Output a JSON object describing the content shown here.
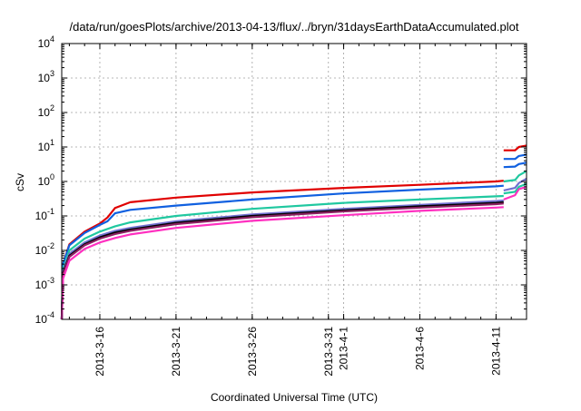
{
  "chart_data": {
    "type": "line",
    "title": "/data/run/goesPlots/archive/2013-04-13/flux/../bryn/31daysEarthDataAccumulated.plot",
    "xlabel": "Coordinated Universal Time (UTC)",
    "ylabel": "cSv",
    "yscale": "log",
    "ylim": [
      0.0001,
      10000
    ],
    "xlim": [
      "2013-03-13 12:00",
      "2013-04-13 00:00"
    ],
    "grid": true,
    "legend": "none",
    "x_ticks": [
      {
        "label": "2013-3-16",
        "x": "2013-03-16"
      },
      {
        "label": "2013-3-21",
        "x": "2013-03-21"
      },
      {
        "label": "2013-3-26",
        "x": "2013-03-26"
      },
      {
        "label": "2013-3-31",
        "x": "2013-03-31"
      },
      {
        "label": "2013-4-1",
        "x": "2013-04-01"
      },
      {
        "label": "2013-4-6",
        "x": "2013-04-06"
      },
      {
        "label": "2013-4-11",
        "x": "2013-04-11"
      }
    ],
    "y_ticks": [
      {
        "base": "10",
        "exp": "-4",
        "value": 0.0001
      },
      {
        "base": "10",
        "exp": "-3",
        "value": 0.001
      },
      {
        "base": "10",
        "exp": "-2",
        "value": 0.01
      },
      {
        "base": "10",
        "exp": "-1",
        "value": 0.1
      },
      {
        "base": "10",
        "exp": "0",
        "value": 1
      },
      {
        "base": "10",
        "exp": "1",
        "value": 10
      },
      {
        "base": "10",
        "exp": "2",
        "value": 100
      },
      {
        "base": "10",
        "exp": "3",
        "value": 1000
      },
      {
        "base": "10",
        "exp": "4",
        "value": 10000
      }
    ],
    "series": [
      {
        "color": "#e00000",
        "points": [
          [
            "2013-03-13 12:00",
            0.0001
          ],
          [
            "2013-03-13 14:00",
            0.004
          ],
          [
            "2013-03-14 00:00",
            0.015
          ],
          [
            "2013-03-15 00:00",
            0.035
          ],
          [
            "2013-03-16 00:00",
            0.06
          ],
          [
            "2013-03-16 12:00",
            0.09
          ],
          [
            "2013-03-17 00:00",
            0.17
          ],
          [
            "2013-03-18 00:00",
            0.25
          ],
          [
            "2013-03-21 00:00",
            0.34
          ],
          [
            "2013-03-26 00:00",
            0.48
          ],
          [
            "2013-04-01 00:00",
            0.65
          ],
          [
            "2013-04-06 00:00",
            0.8
          ],
          [
            "2013-04-11 00:00",
            1.0
          ],
          [
            "2013-04-11 12:00",
            1.05
          ]
        ]
      },
      {
        "color": "#1060e0",
        "points": [
          [
            "2013-03-13 12:00",
            0.0001
          ],
          [
            "2013-03-13 14:00",
            0.004
          ],
          [
            "2013-03-14 00:00",
            0.014
          ],
          [
            "2013-03-15 00:00",
            0.032
          ],
          [
            "2013-03-16 00:00",
            0.055
          ],
          [
            "2013-03-16 12:00",
            0.07
          ],
          [
            "2013-03-17 00:00",
            0.12
          ],
          [
            "2013-03-18 00:00",
            0.15
          ],
          [
            "2013-03-21 00:00",
            0.2
          ],
          [
            "2013-03-26 00:00",
            0.3
          ],
          [
            "2013-04-01 00:00",
            0.45
          ],
          [
            "2013-04-06 00:00",
            0.58
          ],
          [
            "2013-04-11 00:00",
            0.72
          ],
          [
            "2013-04-11 12:00",
            0.75
          ]
        ]
      },
      {
        "color": "#20c8a0",
        "points": [
          [
            "2013-03-13 12:00",
            0.0001
          ],
          [
            "2013-03-13 14:00",
            0.003
          ],
          [
            "2013-03-14 00:00",
            0.01
          ],
          [
            "2013-03-15 00:00",
            0.022
          ],
          [
            "2013-03-16 00:00",
            0.035
          ],
          [
            "2013-03-17 00:00",
            0.05
          ],
          [
            "2013-03-18 00:00",
            0.065
          ],
          [
            "2013-03-21 00:00",
            0.1
          ],
          [
            "2013-03-26 00:00",
            0.16
          ],
          [
            "2013-04-01 00:00",
            0.24
          ],
          [
            "2013-04-06 00:00",
            0.3
          ],
          [
            "2013-04-11 00:00",
            0.37
          ],
          [
            "2013-04-11 12:00",
            0.38
          ]
        ]
      },
      {
        "color": "#7070d0",
        "points": [
          [
            "2013-03-13 12:00",
            0.0001
          ],
          [
            "2013-03-13 14:00",
            0.0025
          ],
          [
            "2013-03-14 00:00",
            0.008
          ],
          [
            "2013-03-15 00:00",
            0.017
          ],
          [
            "2013-03-16 00:00",
            0.027
          ],
          [
            "2013-03-17 00:00",
            0.037
          ],
          [
            "2013-03-18 00:00",
            0.045
          ],
          [
            "2013-03-21 00:00",
            0.07
          ],
          [
            "2013-03-26 00:00",
            0.11
          ],
          [
            "2013-04-01 00:00",
            0.16
          ],
          [
            "2013-04-06 00:00",
            0.21
          ],
          [
            "2013-04-11 00:00",
            0.27
          ],
          [
            "2013-04-11 12:00",
            0.28
          ]
        ]
      },
      {
        "color": "#000000",
        "points": [
          [
            "2013-03-13 12:00",
            0.0001
          ],
          [
            "2013-03-13 14:00",
            0.0022
          ],
          [
            "2013-03-14 00:00",
            0.007
          ],
          [
            "2013-03-15 00:00",
            0.015
          ],
          [
            "2013-03-16 00:00",
            0.024
          ],
          [
            "2013-03-17 00:00",
            0.033
          ],
          [
            "2013-03-18 00:00",
            0.04
          ],
          [
            "2013-03-21 00:00",
            0.063
          ],
          [
            "2013-03-26 00:00",
            0.1
          ],
          [
            "2013-04-01 00:00",
            0.145
          ],
          [
            "2013-04-06 00:00",
            0.19
          ],
          [
            "2013-04-11 00:00",
            0.24
          ],
          [
            "2013-04-11 12:00",
            0.25
          ]
        ]
      },
      {
        "color": "#8a2060",
        "points": [
          [
            "2013-03-13 12:00",
            0.0001
          ],
          [
            "2013-03-13 14:00",
            0.002
          ],
          [
            "2013-03-14 00:00",
            0.0065
          ],
          [
            "2013-03-15 00:00",
            0.014
          ],
          [
            "2013-03-16 00:00",
            0.022
          ],
          [
            "2013-03-17 00:00",
            0.03
          ],
          [
            "2013-03-18 00:00",
            0.037
          ],
          [
            "2013-03-21 00:00",
            0.058
          ],
          [
            "2013-03-26 00:00",
            0.092
          ],
          [
            "2013-04-01 00:00",
            0.135
          ],
          [
            "2013-04-06 00:00",
            0.175
          ],
          [
            "2013-04-11 00:00",
            0.22
          ],
          [
            "2013-04-11 12:00",
            0.23
          ]
        ]
      },
      {
        "color": "#ff30c0",
        "points": [
          [
            "2013-03-13 12:00",
            0.0001
          ],
          [
            "2013-03-13 14:00",
            0.0015
          ],
          [
            "2013-03-14 00:00",
            0.005
          ],
          [
            "2013-03-15 00:00",
            0.011
          ],
          [
            "2013-03-16 00:00",
            0.017
          ],
          [
            "2013-03-17 00:00",
            0.023
          ],
          [
            "2013-03-18 00:00",
            0.029
          ],
          [
            "2013-03-21 00:00",
            0.045
          ],
          [
            "2013-03-26 00:00",
            0.072
          ],
          [
            "2013-04-01 00:00",
            0.105
          ],
          [
            "2013-04-06 00:00",
            0.14
          ],
          [
            "2013-04-11 00:00",
            0.175
          ],
          [
            "2013-04-11 12:00",
            0.18
          ]
        ]
      },
      {
        "color": "#e00000",
        "points": [
          [
            "2013-04-11 12:00",
            8.0
          ],
          [
            "2013-04-12 06:00",
            8.0
          ],
          [
            "2013-04-12 12:00",
            10.0
          ],
          [
            "2013-04-13 00:00",
            11.0
          ]
        ]
      },
      {
        "color": "#1060e0",
        "points": [
          [
            "2013-04-11 12:00",
            4.5
          ],
          [
            "2013-04-12 06:00",
            4.5
          ],
          [
            "2013-04-12 12:00",
            5.5
          ],
          [
            "2013-04-13 00:00",
            6.0
          ]
        ]
      },
      {
        "color": "#1060e0",
        "points": [
          [
            "2013-04-11 12:00",
            2.6
          ],
          [
            "2013-04-12 06:00",
            2.7
          ],
          [
            "2013-04-12 12:00",
            3.2
          ],
          [
            "2013-04-13 00:00",
            3.5
          ]
        ]
      },
      {
        "color": "#20c8a0",
        "points": [
          [
            "2013-04-11 12:00",
            1.0
          ],
          [
            "2013-04-12 06:00",
            1.1
          ],
          [
            "2013-04-12 12:00",
            1.5
          ],
          [
            "2013-04-13 00:00",
            2.0
          ]
        ]
      },
      {
        "color": "#7070d0",
        "points": [
          [
            "2013-04-11 12:00",
            0.55
          ],
          [
            "2013-04-12 06:00",
            0.65
          ],
          [
            "2013-04-12 12:00",
            0.9
          ],
          [
            "2013-04-13 00:00",
            1.2
          ]
        ]
      },
      {
        "color": "#20c8a0",
        "points": [
          [
            "2013-04-11 12:00",
            0.45
          ],
          [
            "2013-04-12 06:00",
            0.5
          ],
          [
            "2013-04-12 12:00",
            0.7
          ],
          [
            "2013-04-13 00:00",
            0.85
          ]
        ]
      },
      {
        "color": "#ff30c0",
        "points": [
          [
            "2013-04-11 12:00",
            0.3
          ],
          [
            "2013-04-12 06:00",
            0.4
          ],
          [
            "2013-04-12 12:00",
            0.6
          ],
          [
            "2013-04-13 00:00",
            0.7
          ]
        ]
      }
    ]
  }
}
